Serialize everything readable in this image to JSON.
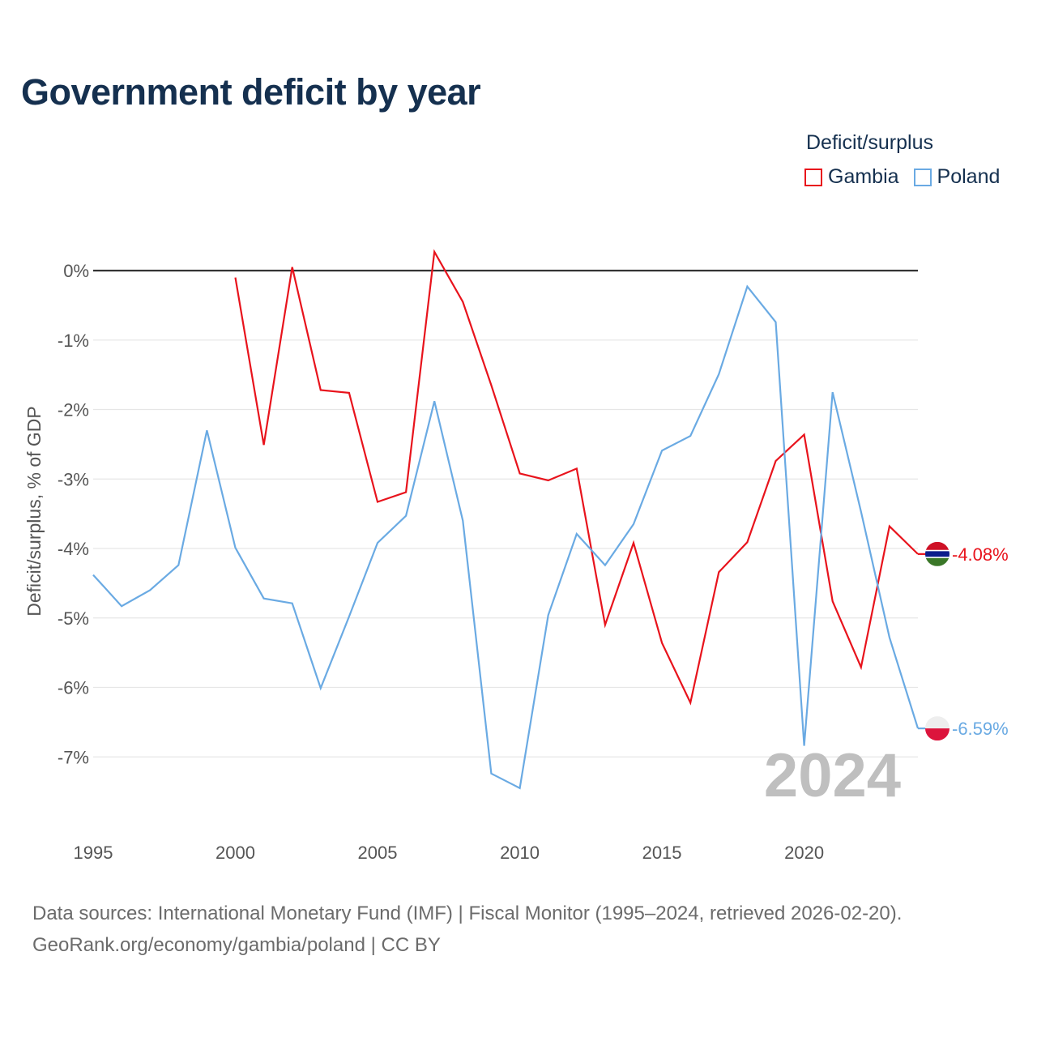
{
  "title": "Government deficit by year",
  "legend": {
    "title": "Deficit/surplus",
    "items": [
      {
        "label": "Gambia",
        "color": "#e8131c"
      },
      {
        "label": "Poland",
        "color": "#6aaae3"
      }
    ]
  },
  "chart_data": {
    "type": "line",
    "title": "Government deficit by year",
    "ylabel": "Deficit/surplus, % of GDP",
    "xlabel": "",
    "xlim": [
      1995,
      2024
    ],
    "ylim": [
      -8,
      0
    ],
    "x_ticks": [
      1995,
      2000,
      2005,
      2010,
      2015,
      2020
    ],
    "y_ticks": [
      0,
      -1,
      -2,
      -3,
      -4,
      -5,
      -6,
      -7
    ],
    "y_tick_labels": [
      "0%",
      "-1%",
      "-2%",
      "-3%",
      "-4%",
      "-5%",
      "-6%",
      "-7%"
    ],
    "x": [
      1995,
      1996,
      1997,
      1998,
      1999,
      2000,
      2001,
      2002,
      2003,
      2004,
      2005,
      2006,
      2007,
      2008,
      2009,
      2010,
      2011,
      2012,
      2013,
      2014,
      2015,
      2016,
      2017,
      2018,
      2019,
      2020,
      2021,
      2022,
      2023,
      2024
    ],
    "series": [
      {
        "name": "Gambia",
        "color": "#e8131c",
        "values": [
          null,
          null,
          null,
          null,
          null,
          -0.1,
          -2.51,
          0.05,
          -1.72,
          -1.76,
          -3.33,
          -3.19,
          0.27,
          -0.45,
          -1.65,
          -2.92,
          -3.02,
          -2.85,
          -5.1,
          -3.92,
          -5.36,
          -6.22,
          -4.34,
          -3.91,
          -2.74,
          -2.36,
          -4.76,
          -5.71,
          -3.68,
          -4.08
        ],
        "end_label": "-4.08%"
      },
      {
        "name": "Poland",
        "color": "#6aaae3",
        "values": [
          -4.38,
          -4.83,
          -4.6,
          -4.24,
          -2.3,
          -3.99,
          -4.72,
          -4.79,
          -6.01,
          -4.98,
          -3.92,
          -3.53,
          -1.88,
          -3.6,
          -7.24,
          -7.45,
          -4.96,
          -3.79,
          -4.24,
          -3.65,
          -2.59,
          -2.38,
          -1.49,
          -0.23,
          -0.74,
          -6.84,
          -1.75,
          -3.47,
          -5.28,
          -6.59
        ],
        "end_label": "-6.59%"
      }
    ],
    "zero_line": true,
    "grid": true,
    "year_watermark": "2024"
  },
  "source": {
    "line1": "Data sources: International Monetary Fund (IMF) | Fiscal Monitor (1995–2024, retrieved 2026-02-20).",
    "line2": "GeoRank.org/economy/gambia/poland | CC BY"
  }
}
